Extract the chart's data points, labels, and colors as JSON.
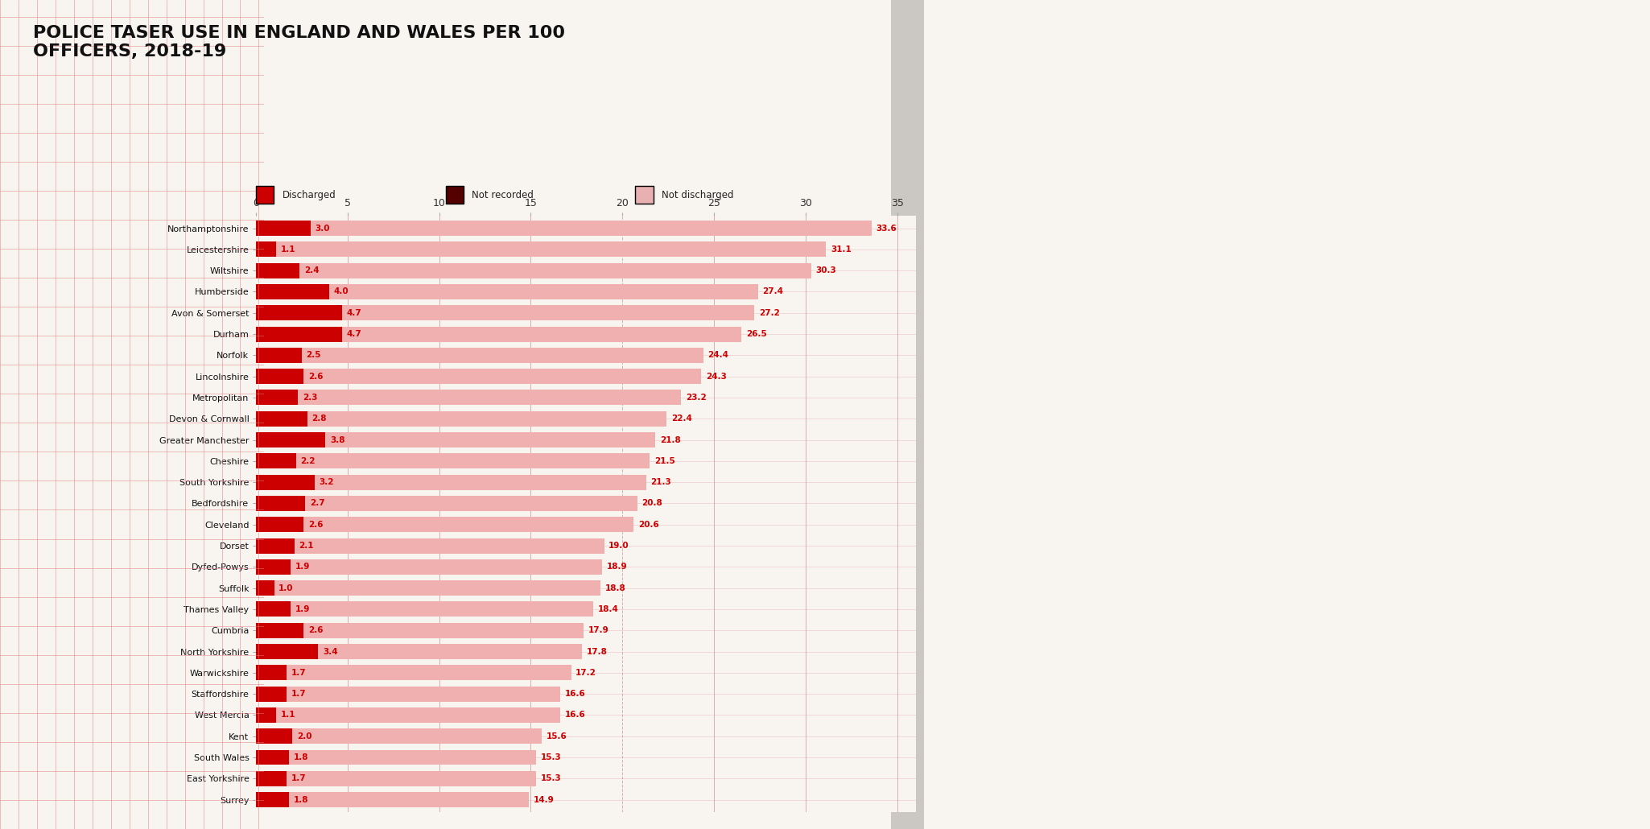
{
  "title_line1": "POLICE TASER USE IN ENGLAND AND WALES PER 100",
  "title_line2": "OFFICERS, 2018-19",
  "categories": [
    "Northamptonshire",
    "Leicestershire",
    "Wiltshire",
    "Humberside",
    "Avon & Somerset",
    "Durham",
    "Norfolk",
    "Lincolnshire",
    "Metropolitan",
    "Devon & Cornwall",
    "Greater Manchester",
    "Cheshire",
    "South Yorkshire",
    "Bedfordshire",
    "Cleveland",
    "Dorset",
    "Dyfed-Powys",
    "Suffolk",
    "Thames Valley",
    "Cumbria",
    "North Yorkshire",
    "Warwickshire",
    "Staffordshire",
    "West Mercia",
    "Kent",
    "South Wales",
    "East Yorkshire",
    "Surrey"
  ],
  "total_values": [
    33.6,
    31.1,
    30.3,
    27.4,
    27.2,
    26.5,
    24.4,
    24.3,
    23.2,
    22.4,
    21.8,
    21.5,
    21.3,
    20.8,
    20.6,
    19.0,
    18.9,
    18.8,
    18.4,
    17.9,
    17.8,
    17.2,
    16.6,
    16.6,
    15.6,
    15.3,
    15.3,
    14.9
  ],
  "discharged": [
    3.0,
    1.1,
    2.4,
    4.0,
    4.7,
    4.7,
    2.5,
    2.6,
    2.3,
    2.8,
    3.8,
    2.2,
    3.2,
    2.7,
    2.6,
    2.1,
    1.9,
    1.0,
    1.9,
    2.6,
    3.4,
    1.7,
    1.7,
    1.1,
    2.0,
    1.8,
    1.7,
    1.8
  ],
  "color_discharged": "#cc0000",
  "color_not_discharged": "#f0b0b0",
  "color_page_left": "#f8f4f0",
  "color_page_right": "#d0ccc8",
  "color_spine": "#888880",
  "color_grid_h": "#e8b0b0",
  "color_grid_v": "#d49090",
  "color_title": "#111111",
  "color_label": "#111111",
  "color_value": "#cc0000",
  "xlim": [
    0,
    36
  ],
  "xticks": [
    0,
    5,
    10,
    15,
    20,
    25,
    30,
    35
  ],
  "legend_items": [
    {
      "color": "#cc0000",
      "label": "Discharged"
    },
    {
      "color": "#550000",
      "label": "Not recorded"
    },
    {
      "color": "#e8b0b0",
      "label": "Not discharged"
    }
  ],
  "figsize": [
    20.5,
    10.3
  ],
  "dpi": 100
}
